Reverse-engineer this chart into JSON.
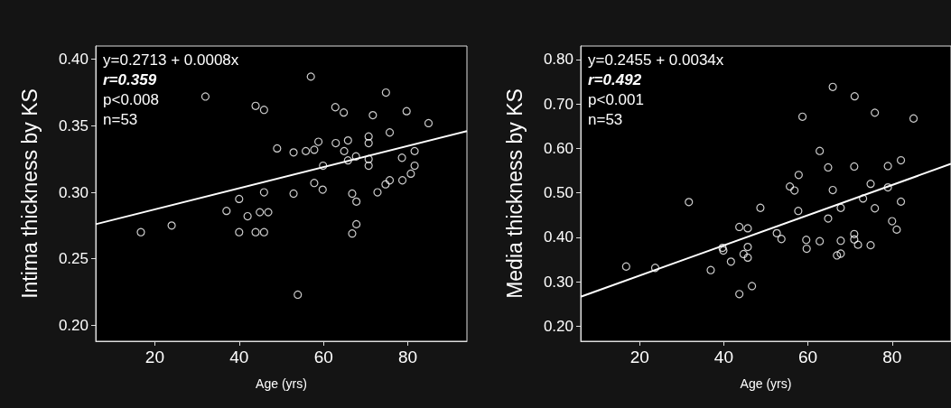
{
  "chart_data": [
    {
      "type": "scatter",
      "xlabel": "Age (yrs)",
      "ylabel": "Intima thickness by KS",
      "xlim": [
        6,
        94
      ],
      "xticks": [
        20,
        40,
        60,
        80
      ],
      "ylim": [
        0.188,
        0.41
      ],
      "yticks": [
        {
          "value": 0.2,
          "label": "0.20"
        },
        {
          "value": 0.25,
          "label": "0.25"
        },
        {
          "value": 0.3,
          "label": "0.30"
        },
        {
          "value": 0.35,
          "label": "0.35"
        },
        {
          "value": 0.4,
          "label": "0.40"
        }
      ],
      "marker": "circle",
      "annotations": [
        "y=0.2713 + 0.0008x",
        "r=0.359",
        "p<0.008",
        "n=53"
      ],
      "series": [
        {
          "color": "#ffffff",
          "x": [
            57.0,
            32.0,
            43.9,
            45.9,
            74.8,
            62.8,
            64.8,
            71.7,
            79.7,
            84.9,
            75.7,
            70.7,
            70.7,
            65.8,
            62.9,
            58.8,
            57.8,
            55.8,
            52.9,
            49.0,
            64.9,
            65.8,
            67.7,
            70.7,
            70.7,
            78.6,
            81.6,
            81.6,
            59.9,
            80.7,
            78.7,
            75.7,
            74.7,
            57.8,
            59.8,
            72.8,
            66.8,
            67.8,
            52.9,
            45.9,
            40.0,
            37.0,
            42.0,
            44.9,
            46.9,
            24.0,
            16.7,
            40.0,
            43.9,
            45.9,
            67.8,
            66.8,
            53.9
          ],
          "values": [
            0.387,
            0.372,
            0.365,
            0.362,
            0.375,
            0.364,
            0.36,
            0.358,
            0.361,
            0.352,
            0.345,
            0.342,
            0.337,
            0.339,
            0.337,
            0.338,
            0.332,
            0.331,
            0.33,
            0.333,
            0.331,
            0.324,
            0.327,
            0.325,
            0.32,
            0.326,
            0.331,
            0.32,
            0.32,
            0.314,
            0.309,
            0.309,
            0.306,
            0.307,
            0.302,
            0.3,
            0.299,
            0.293,
            0.299,
            0.3,
            0.295,
            0.286,
            0.282,
            0.285,
            0.285,
            0.275,
            0.27,
            0.27,
            0.27,
            0.27,
            0.276,
            0.269,
            0.223
          ]
        },
        {
          "type": "line",
          "color": "#ffffff",
          "marker": "none",
          "x": [
            6,
            94
          ],
          "values": [
            0.276,
            0.346
          ]
        }
      ]
    },
    {
      "type": "scatter",
      "xlabel": "Age (yrs)",
      "ylabel": "Media thickness by KS",
      "xlim": [
        6,
        94
      ],
      "xticks": [
        20,
        40,
        60,
        80
      ],
      "ylim": [
        0.166,
        0.83
      ],
      "yticks": [
        {
          "value": 0.2,
          "label": "0.20"
        },
        {
          "value": 0.3,
          "label": "0.30"
        },
        {
          "value": 0.4,
          "label": "0.40"
        },
        {
          "value": 0.5,
          "label": "0.50"
        },
        {
          "value": 0.6,
          "label": "0.60"
        },
        {
          "value": 0.7,
          "label": "0.70"
        },
        {
          "value": 0.8,
          "label": "0.80"
        }
      ],
      "marker": "circle",
      "annotations": [
        "y=0.2455 + 0.0034x",
        "r=0.492",
        "p<0.001",
        "n=53"
      ],
      "series": [
        {
          "color": "#ffffff",
          "x": [
            65.9,
            71.1,
            75.9,
            85.1,
            58.7,
            62.8,
            64.8,
            71.0,
            79.0,
            82.1,
            57.8,
            55.7,
            56.8,
            65.9,
            74.9,
            79.0,
            73.1,
            82.1,
            31.7,
            48.7,
            67.8,
            75.9,
            57.7,
            64.8,
            80.0,
            81.1,
            43.7,
            45.7,
            52.6,
            53.7,
            59.6,
            62.8,
            67.8,
            71.0,
            71.0,
            71.9,
            74.9,
            59.7,
            39.7,
            39.9,
            45.7,
            44.7,
            45.7,
            41.7,
            66.9,
            67.8,
            16.8,
            23.7,
            36.9,
            46.7,
            43.7
          ],
          "values": [
            0.738,
            0.717,
            0.68,
            0.667,
            0.671,
            0.594,
            0.557,
            0.559,
            0.56,
            0.573,
            0.54,
            0.514,
            0.505,
            0.506,
            0.52,
            0.512,
            0.487,
            0.48,
            0.479,
            0.466,
            0.466,
            0.465,
            0.459,
            0.442,
            0.436,
            0.417,
            0.423,
            0.42,
            0.409,
            0.396,
            0.394,
            0.391,
            0.392,
            0.407,
            0.395,
            0.383,
            0.382,
            0.374,
            0.376,
            0.37,
            0.378,
            0.362,
            0.354,
            0.345,
            0.359,
            0.363,
            0.334,
            0.331,
            0.326,
            0.29,
            0.272
          ]
        },
        {
          "type": "line",
          "color": "#ffffff",
          "marker": "none",
          "x": [
            6,
            94
          ],
          "values": [
            0.266,
            0.565
          ]
        }
      ]
    }
  ]
}
